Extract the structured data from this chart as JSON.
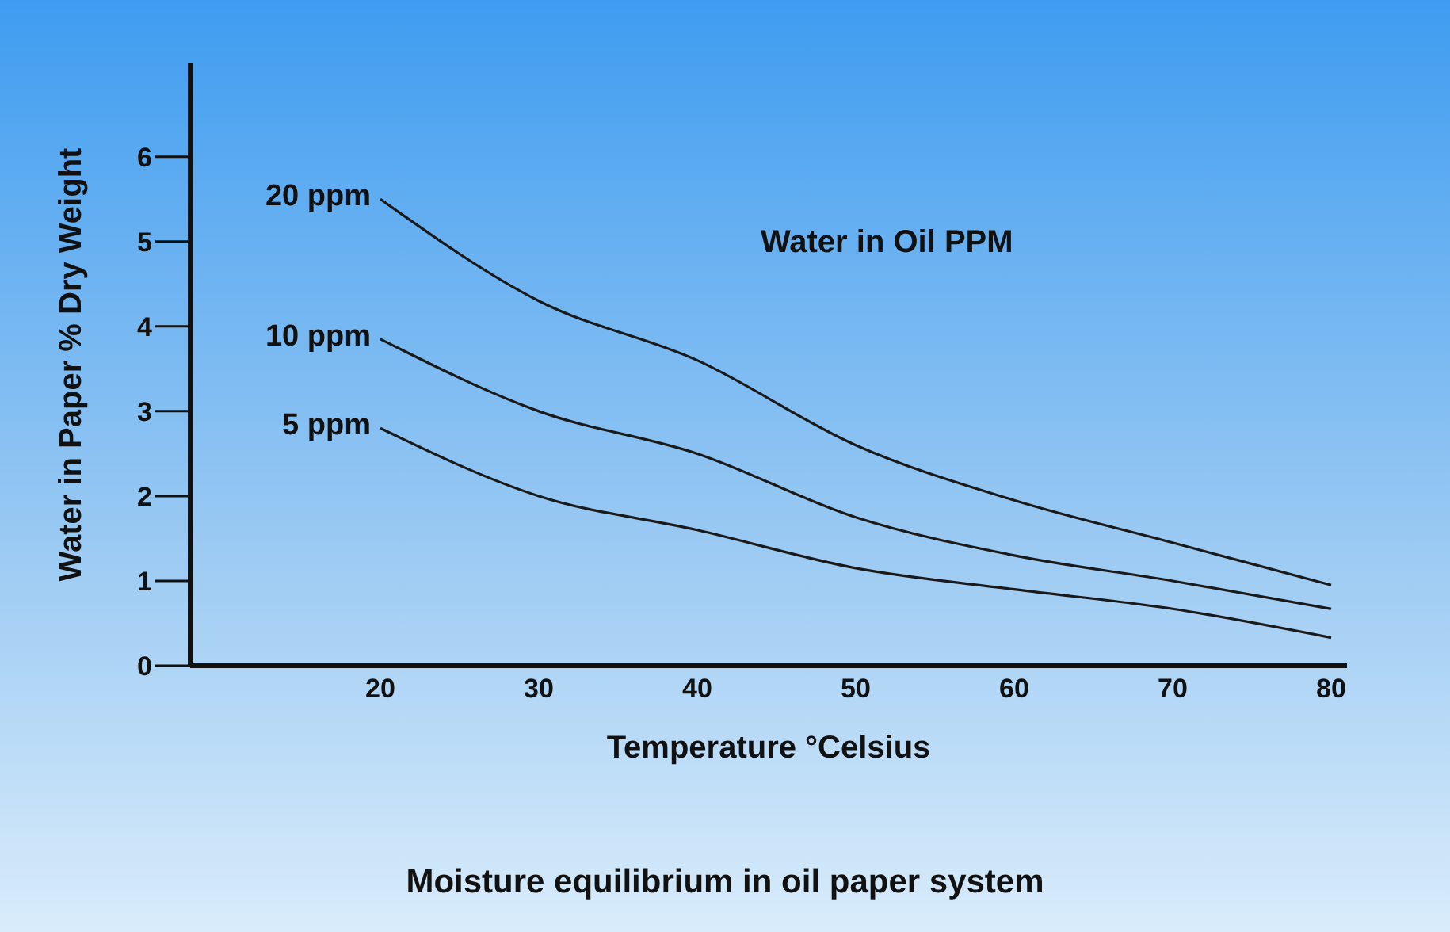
{
  "chart_data": {
    "type": "line",
    "legend_title": "Water in Oil PPM",
    "xlabel": "Temperature °Celsius",
    "ylabel": "Water in Paper % Dry Weight",
    "annotations": [
      "Moisture equilibrium in oil paper system"
    ],
    "x": [
      20,
      30,
      40,
      50,
      60,
      70,
      80
    ],
    "xlim": [
      8,
      81
    ],
    "xticks": [
      20,
      30,
      40,
      50,
      60,
      70,
      80
    ],
    "ylim": [
      0,
      7.1
    ],
    "yticks": [
      0,
      1,
      2,
      3,
      4,
      5,
      6
    ],
    "line_style": "solid",
    "series": [
      {
        "name": "20 ppm",
        "color": "#1a1a1a",
        "values": [
          5.5,
          4.3,
          3.6,
          2.6,
          1.95,
          1.45,
          0.95
        ]
      },
      {
        "name": "10 ppm",
        "color": "#1a1a1a",
        "values": [
          3.85,
          3.0,
          2.5,
          1.75,
          1.3,
          1.0,
          0.67
        ]
      },
      {
        "name": "5 ppm",
        "color": "#1a1a1a",
        "values": [
          2.8,
          2.0,
          1.6,
          1.15,
          0.9,
          0.67,
          0.33
        ]
      }
    ]
  }
}
